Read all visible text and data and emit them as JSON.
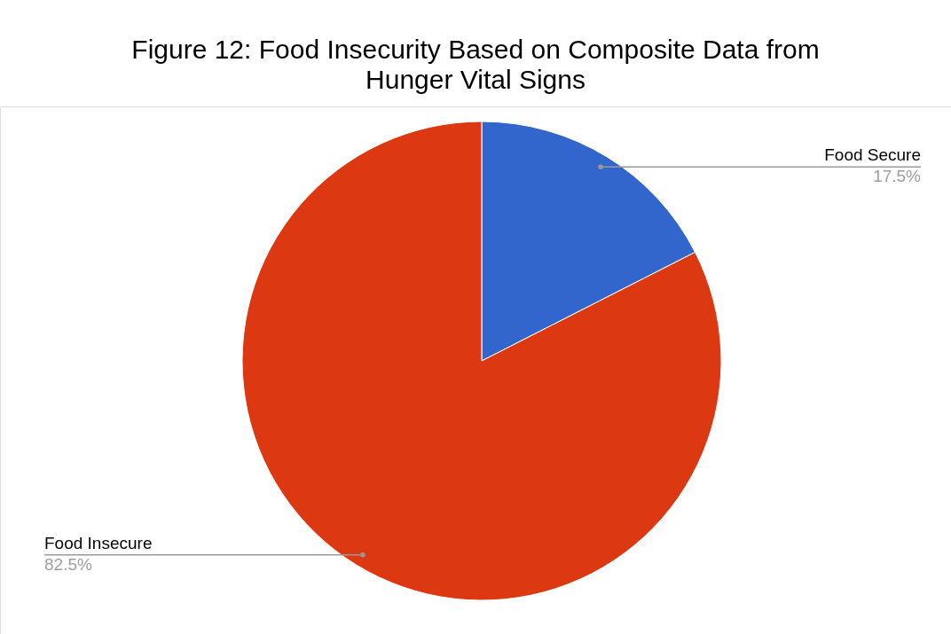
{
  "chart_data": {
    "type": "pie",
    "title": "Figure 12: Food Insecurity Based on Composite Data from Hunger Vital Signs",
    "categories": [
      "Food Secure",
      "Food Insecure"
    ],
    "values": [
      17.5,
      82.5
    ],
    "colors": [
      "#3366cc",
      "#dc3912"
    ],
    "value_labels": [
      "17.5%",
      "82.5%"
    ],
    "legend": false
  }
}
